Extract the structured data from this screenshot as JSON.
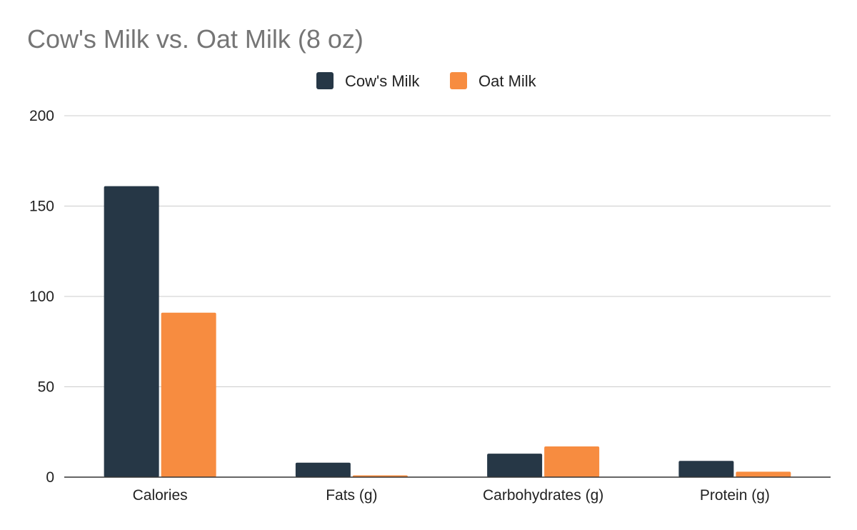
{
  "chart_data": {
    "type": "bar",
    "title": "Cow's Milk vs. Oat Milk (8 oz)",
    "categories": [
      "Calories",
      "Fats (g)",
      "Carbohydrates (g)",
      "Protein (g)"
    ],
    "series": [
      {
        "name": "Cow's Milk",
        "color": "#263746",
        "values": [
          161,
          8,
          13,
          9
        ]
      },
      {
        "name": "Oat Milk",
        "color": "#f78c40",
        "values": [
          91,
          1,
          17,
          3
        ]
      }
    ],
    "ylim": [
      0,
      200
    ],
    "yticks": [
      0,
      50,
      100,
      150,
      200
    ],
    "grid": true,
    "legend_position": "top-center",
    "xlabel": "",
    "ylabel": ""
  }
}
